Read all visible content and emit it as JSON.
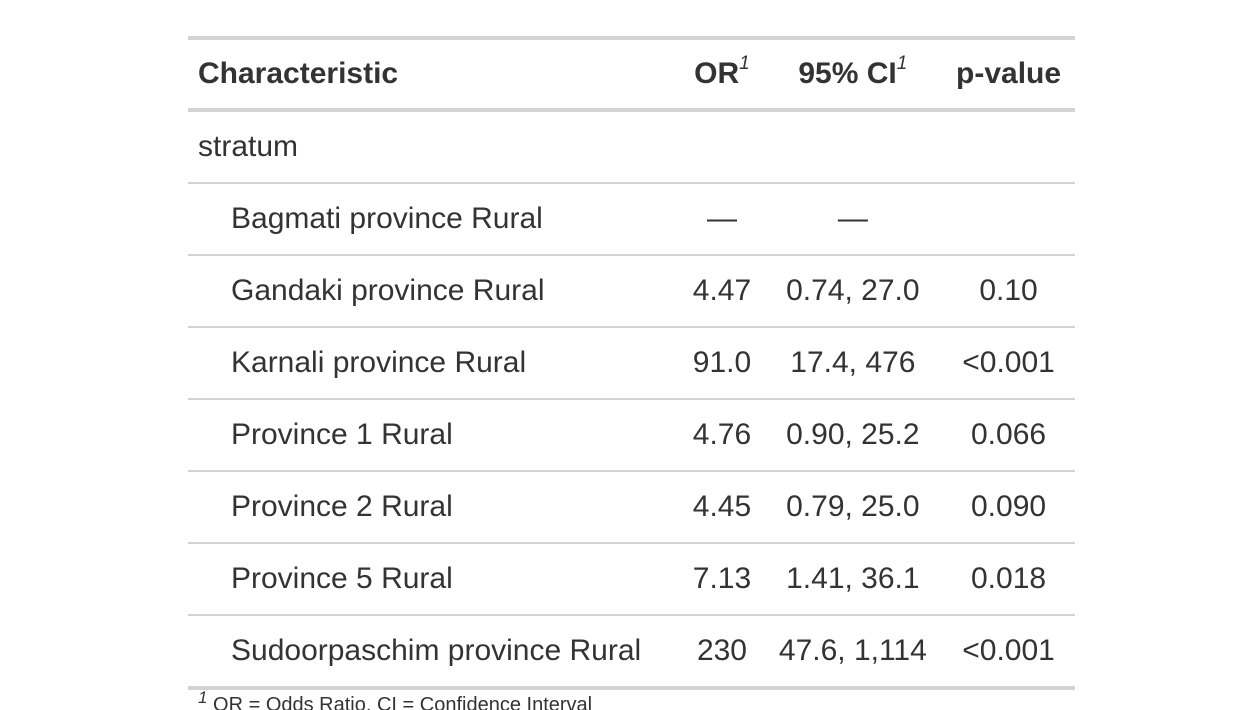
{
  "header": {
    "characteristic": "Characteristic",
    "or": "OR",
    "or_footnote_mark": "1",
    "ci": "95% CI",
    "ci_footnote_mark": "1",
    "pvalue": "p-value"
  },
  "group_label": "stratum",
  "rows": [
    {
      "label": "Bagmati province Rural",
      "or": "—",
      "ci": "—",
      "p": ""
    },
    {
      "label": "Gandaki province Rural",
      "or": "4.47",
      "ci": "0.74, 27.0",
      "p": "0.10"
    },
    {
      "label": "Karnali province Rural",
      "or": "91.0",
      "ci": "17.4, 476",
      "p": "<0.001"
    },
    {
      "label": "Province 1 Rural",
      "or": "4.76",
      "ci": "0.90, 25.2",
      "p": "0.066"
    },
    {
      "label": "Province 2 Rural",
      "or": "4.45",
      "ci": "0.79, 25.0",
      "p": "0.090"
    },
    {
      "label": "Province 5 Rural",
      "or": "7.13",
      "ci": "1.41, 36.1",
      "p": "0.018"
    },
    {
      "label": "Sudoorpaschim province Rural",
      "or": "230",
      "ci": "47.6, 1,114",
      "p": "<0.001"
    }
  ],
  "footnote": {
    "mark": "1",
    "text": "OR = Odds Ratio, CI = Confidence Interval"
  }
}
